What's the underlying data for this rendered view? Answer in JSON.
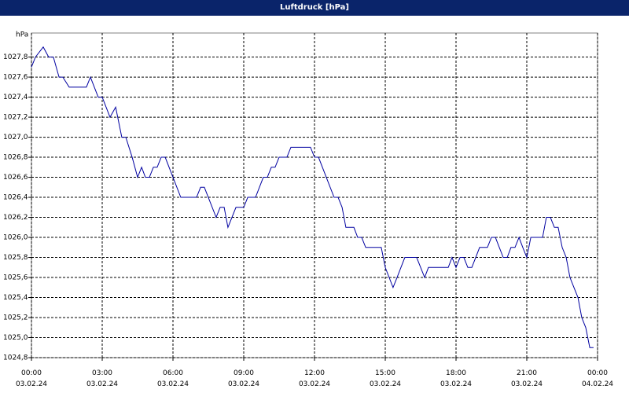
{
  "chart_data": {
    "type": "line",
    "title": "Luftdruck [hPa]",
    "y_unit_label": "hPa",
    "x": [
      0,
      0.17,
      0.5,
      0.73,
      0.93,
      1.17,
      1.33,
      1.6,
      2.33,
      2.5,
      2.83,
      3,
      3.33,
      3.57,
      3.83,
      4,
      4.27,
      4.5,
      4.67,
      4.83,
      5,
      5.17,
      5.33,
      5.5,
      5.67,
      6,
      6.33,
      7,
      7.17,
      7.33,
      7.83,
      8,
      8.17,
      8.33,
      8.67,
      9,
      9.17,
      9.5,
      9.83,
      10,
      10.17,
      10.33,
      10.5,
      10.83,
      11,
      11.83,
      12,
      12.17,
      12.5,
      12.83,
      13,
      13.17,
      13.33,
      13.67,
      13.83,
      14,
      14.17,
      14.83,
      15,
      15.33,
      15.5,
      15.83,
      16.33,
      16.67,
      16.83,
      17.67,
      17.83,
      18,
      18.17,
      18.33,
      18.5,
      18.67,
      19,
      19.33,
      19.5,
      19.67,
      20,
      20.17,
      20.33,
      20.5,
      20.67,
      20.83,
      21,
      21.17,
      21.67,
      21.83,
      22,
      22.17,
      22.33,
      22.5,
      22.67,
      22.83,
      23,
      23.17,
      23.33,
      23.5,
      23.67,
      23.83
    ],
    "values": [
      1027.7,
      1027.8,
      1027.9,
      1027.8,
      1027.8,
      1027.6,
      1027.6,
      1027.5,
      1027.5,
      1027.6,
      1027.4,
      1027.4,
      1027.2,
      1027.3,
      1027.0,
      1027.0,
      1026.8,
      1026.6,
      1026.7,
      1026.6,
      1026.6,
      1026.7,
      1026.7,
      1026.8,
      1026.8,
      1026.6,
      1026.4,
      1026.4,
      1026.5,
      1026.5,
      1026.2,
      1026.3,
      1026.3,
      1026.1,
      1026.3,
      1026.3,
      1026.4,
      1026.4,
      1026.6,
      1026.6,
      1026.7,
      1026.7,
      1026.8,
      1026.8,
      1026.9,
      1026.9,
      1026.8,
      1026.8,
      1026.6,
      1026.4,
      1026.4,
      1026.3,
      1026.1,
      1026.1,
      1026.0,
      1026.0,
      1025.9,
      1025.9,
      1025.7,
      1025.5,
      1025.6,
      1025.8,
      1025.8,
      1025.6,
      1025.7,
      1025.7,
      1025.8,
      1025.7,
      1025.8,
      1025.8,
      1025.7,
      1025.7,
      1025.9,
      1025.9,
      1026.0,
      1026.0,
      1025.8,
      1025.8,
      1025.9,
      1025.9,
      1026.0,
      1025.9,
      1025.8,
      1026.0,
      1026.0,
      1026.2,
      1026.2,
      1026.1,
      1026.1,
      1025.9,
      1025.8,
      1025.6,
      1025.5,
      1025.4,
      1025.2,
      1025.1,
      1024.9,
      1024.9
    ],
    "color": "#0000a0",
    "xlim": [
      0,
      24
    ],
    "xticks": [
      {
        "value": 0,
        "label": "00:00\n03.02.24"
      },
      {
        "value": 3,
        "label": "03:00\n03.02.24"
      },
      {
        "value": 6,
        "label": "06:00\n03.02.24"
      },
      {
        "value": 9,
        "label": "09:00\n03.02.24"
      },
      {
        "value": 12,
        "label": "12:00\n03.02.24"
      },
      {
        "value": 15,
        "label": "15:00\n03.02.24"
      },
      {
        "value": 18,
        "label": "18:00\n03.02.24"
      },
      {
        "value": 21,
        "label": "21:00\n03.02.24"
      },
      {
        "value": 24,
        "label": "00:00\n04.02.24"
      }
    ],
    "ylim": [
      1024.8,
      1028.04
    ],
    "yticks": [
      {
        "value": 1024.8,
        "label": "1024,8"
      },
      {
        "value": 1025.0,
        "label": "1025,0"
      },
      {
        "value": 1025.2,
        "label": "1025,2"
      },
      {
        "value": 1025.4,
        "label": "1025,4"
      },
      {
        "value": 1025.6,
        "label": "1025,6"
      },
      {
        "value": 1025.8,
        "label": "1025,8"
      },
      {
        "value": 1026.0,
        "label": "1026,0"
      },
      {
        "value": 1026.2,
        "label": "1026,2"
      },
      {
        "value": 1026.4,
        "label": "1026,4"
      },
      {
        "value": 1026.6,
        "label": "1026,6"
      },
      {
        "value": 1026.8,
        "label": "1026,8"
      },
      {
        "value": 1027.0,
        "label": "1027,0"
      },
      {
        "value": 1027.2,
        "label": "1027,2"
      },
      {
        "value": 1027.4,
        "label": "1027,4"
      },
      {
        "value": 1027.6,
        "label": "1027,6"
      },
      {
        "value": 1027.8,
        "label": "1027,8"
      }
    ],
    "grid": true
  }
}
